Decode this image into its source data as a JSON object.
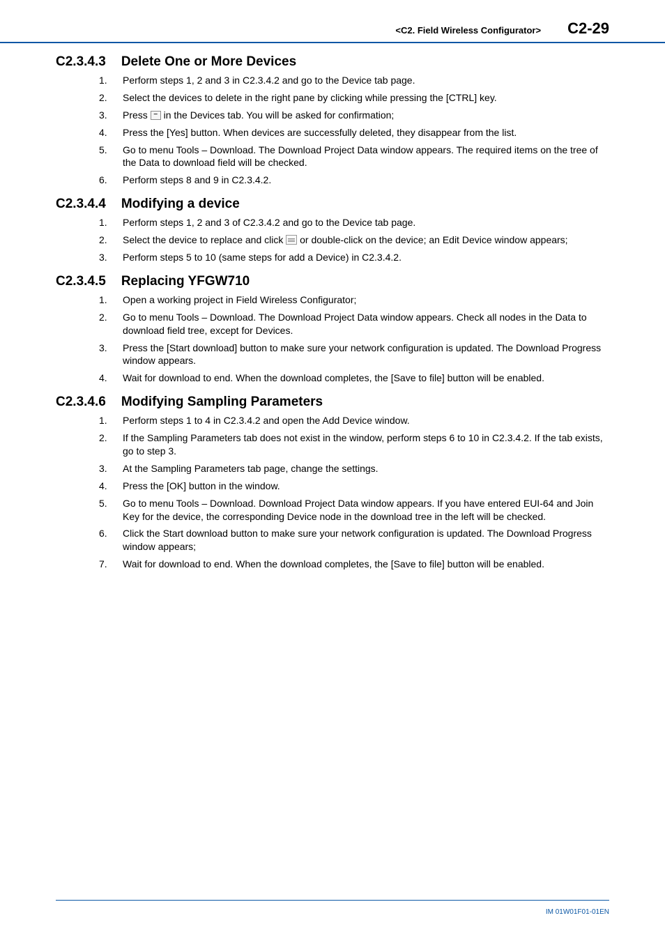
{
  "header": {
    "breadcrumb": "<C2.  Field Wireless Configurator>",
    "page_no": "C2-29"
  },
  "sections": [
    {
      "num": "C2.3.4.3",
      "title": "Delete One or More Devices",
      "first": true,
      "steps": [
        {
          "n": "1.",
          "body": "Perform steps 1, 2 and 3 in C2.3.4.2 and go to the Device tab page."
        },
        {
          "n": "2.",
          "body": "Select the devices to delete in the right pane by clicking while pressing the [CTRL] key."
        },
        {
          "n": "3.",
          "pre": "Press ",
          "icon": "minus",
          "post": " in the Devices tab. You will be asked for confirmation;"
        },
        {
          "n": "4.",
          "body": "Press the [Yes] button. When devices are successfully deleted, they disappear from the list."
        },
        {
          "n": "5.",
          "body": "Go to menu Tools – Download. The Download Project Data window appears. The required items on the tree of the Data to download field will be checked."
        },
        {
          "n": "6.",
          "body": "Perform steps 8 and 9 in C2.3.4.2."
        }
      ]
    },
    {
      "num": "C2.3.4.4",
      "title": "Modifying a device",
      "steps": [
        {
          "n": "1.",
          "body": "Perform steps 1, 2 and 3 of C2.3.4.2 and go to the Device tab page."
        },
        {
          "n": "2.",
          "pre": "Select the device to replace and click ",
          "icon": "list",
          "post": " or double-click on the device; an Edit Device window appears;"
        },
        {
          "n": "3.",
          "body": "Perform steps 5 to 10 (same steps for add a Device) in C2.3.4.2."
        }
      ]
    },
    {
      "num": "C2.3.4.5",
      "title": "Replacing YFGW710",
      "steps": [
        {
          "n": "1.",
          "body": "Open a working project in Field Wireless Configurator;"
        },
        {
          "n": "2.",
          "body": "Go to menu Tools – Download. The Download Project Data window appears. Check all nodes in the Data to download field tree, except for Devices."
        },
        {
          "n": "3.",
          "body": "Press the [Start download] button to make sure your network configuration is updated. The Download Progress window appears."
        },
        {
          "n": "4.",
          "body": "Wait for download to end. When the download completes, the [Save to file] button will be enabled."
        }
      ]
    },
    {
      "num": "C2.3.4.6",
      "title": "Modifying Sampling Parameters",
      "steps": [
        {
          "n": "1.",
          "body": "Perform steps 1 to 4 in C2.3.4.2 and open the Add Device window."
        },
        {
          "n": "2.",
          "body": "If the Sampling Parameters tab does not exist in the window, perform steps 6 to 10 in C2.3.4.2. If the tab exists, go to step 3."
        },
        {
          "n": "3.",
          "body": "At the Sampling Parameters tab page, change the settings."
        },
        {
          "n": "4.",
          "body": "Press the [OK] button in the window."
        },
        {
          "n": "5.",
          "body": "Go to menu Tools – Download. Download Project Data window appears. If you have entered EUI-64 and Join Key for the device, the corresponding Device node in the download tree in the left will be checked."
        },
        {
          "n": "6.",
          "body": "Click the Start download button to make sure your network configuration is updated. The Download Progress window appears;"
        },
        {
          "n": "7.",
          "body": "Wait for download to end. When the download completes, the [Save to file] button will be enabled."
        }
      ]
    }
  ],
  "footer": {
    "doc_id": "IM 01W01F01-01EN"
  },
  "style": {
    "rule_color": "#0b57a5",
    "body_font_size": 14,
    "heading_font_size": 19,
    "header_page_font_size": 22,
    "background": "#ffffff"
  }
}
